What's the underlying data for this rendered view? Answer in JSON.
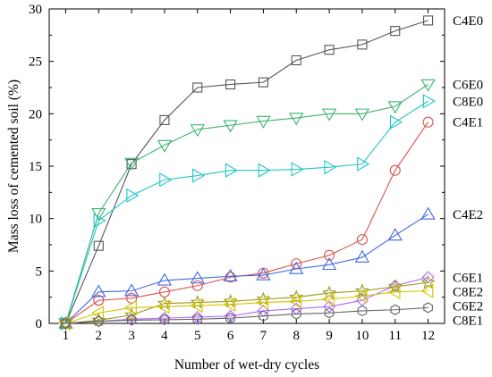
{
  "chart_data": {
    "type": "line",
    "title": "",
    "xlabel": "Number of wet-dry cycles",
    "ylabel": "Mass loss of cemented soil (%)",
    "xlim": [
      0.5,
      12.5
    ],
    "ylim": [
      0,
      30
    ],
    "x": [
      1,
      2,
      3,
      4,
      5,
      6,
      7,
      8,
      9,
      10,
      11,
      12
    ],
    "x_ticks": [
      "1",
      "2",
      "3",
      "4",
      "5",
      "6",
      "7",
      "8",
      "9",
      "10",
      "11",
      "12"
    ],
    "y_ticks": [
      "0",
      "5",
      "10",
      "15",
      "20",
      "25",
      "30"
    ],
    "grid": false,
    "legend": "labels at right end of each series",
    "series": [
      {
        "name": "C4E0",
        "color": "#555555",
        "marker": "square",
        "values": [
          0,
          7.4,
          15.2,
          19.4,
          22.5,
          22.8,
          23.0,
          25.1,
          26.1,
          26.6,
          27.9,
          28.9
        ]
      },
      {
        "name": "C6E0",
        "color": "#3cb371",
        "marker": "triangle-down",
        "values": [
          0,
          10.5,
          15.3,
          17.0,
          18.5,
          18.9,
          19.3,
          19.6,
          20.0,
          20.0,
          20.7,
          22.8
        ]
      },
      {
        "name": "C8E0",
        "color": "#20c5c5",
        "marker": "triangle-right",
        "values": [
          0,
          9.8,
          12.2,
          13.7,
          14.1,
          14.6,
          14.6,
          14.7,
          14.9,
          15.2,
          19.2,
          21.2
        ]
      },
      {
        "name": "C4E1",
        "color": "#d9534f",
        "marker": "circle",
        "values": [
          0,
          2.2,
          2.4,
          3.0,
          3.6,
          4.4,
          4.8,
          5.7,
          6.5,
          8.0,
          14.6,
          19.2
        ]
      },
      {
        "name": "C4E2",
        "color": "#4169e1",
        "marker": "triangle-up",
        "values": [
          0,
          3.0,
          3.1,
          4.1,
          4.3,
          4.5,
          4.6,
          5.2,
          5.6,
          6.3,
          8.4,
          10.4
        ]
      },
      {
        "name": "C6E1",
        "color": "#b266ff",
        "marker": "diamond",
        "values": [
          0,
          0.2,
          0.4,
          0.5,
          0.6,
          0.7,
          1.2,
          1.4,
          1.6,
          2.2,
          3.6,
          4.4
        ]
      },
      {
        "name": "C8E2",
        "color": "#9a9a1a",
        "marker": "star",
        "values": [
          0,
          0.3,
          0.8,
          1.9,
          2.0,
          2.1,
          2.3,
          2.5,
          2.9,
          3.1,
          3.5,
          3.9
        ]
      },
      {
        "name": "C6E2",
        "color": "#d4c400",
        "marker": "triangle-left",
        "values": [
          0,
          1.0,
          1.5,
          1.6,
          1.7,
          1.8,
          2.0,
          2.1,
          2.3,
          2.6,
          3.0,
          3.1
        ]
      },
      {
        "name": "C8E1",
        "color": "#666666",
        "marker": "hexagon",
        "values": [
          0,
          0.2,
          0.3,
          0.35,
          0.4,
          0.5,
          0.7,
          0.9,
          1.0,
          1.2,
          1.3,
          1.5
        ]
      }
    ]
  }
}
